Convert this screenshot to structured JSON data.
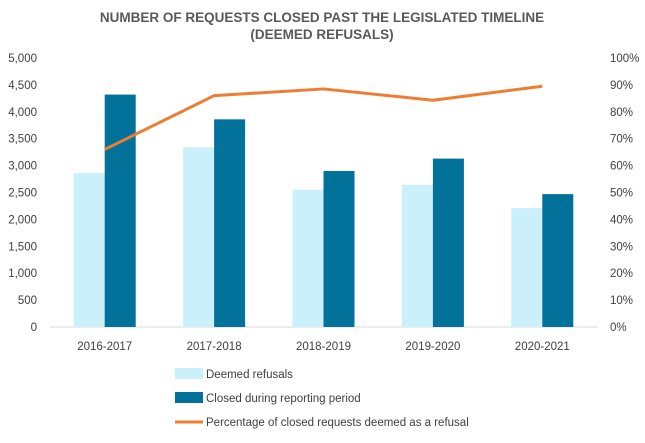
{
  "chart_data": {
    "type": "bar",
    "title": [
      "NUMBER OF REQUESTS CLOSED PAST THE LEGISLATED TIMELINE",
      "(DEEMED REFUSALS)"
    ],
    "categories": [
      "2016-2017",
      "2017-2018",
      "2018-2019",
      "2019-2020",
      "2020-2021"
    ],
    "series": [
      {
        "name": "Deemed refusals",
        "type": "bar",
        "axis": "left",
        "color": "#c9f0fb",
        "values": [
          2860,
          3340,
          2550,
          2640,
          2210
        ]
      },
      {
        "name": "Closed during reporting period",
        "type": "bar",
        "axis": "left",
        "color": "#02729b",
        "values": [
          4320,
          3860,
          2900,
          3130,
          2470
        ]
      },
      {
        "name": "Percentage of closed requests deemed as a refusal",
        "type": "line",
        "axis": "right",
        "color": "#ed7d31",
        "values": [
          66,
          86,
          88.5,
          84.3,
          89.5
        ]
      }
    ],
    "y_left": {
      "min": 0,
      "max": 5000,
      "step": 500,
      "tick_labels": [
        "0",
        "500",
        "1,000",
        "1,500",
        "2,000",
        "2,500",
        "3,000",
        "3,500",
        "4,000",
        "4,500",
        "5,000"
      ]
    },
    "y_right": {
      "min": 0,
      "max": 100,
      "step": 10,
      "tick_labels": [
        "0%",
        "10%",
        "20%",
        "30%",
        "40%",
        "50%",
        "60%",
        "70%",
        "80%",
        "90%",
        "100%"
      ]
    },
    "grid": false,
    "legend_position": "bottom"
  }
}
